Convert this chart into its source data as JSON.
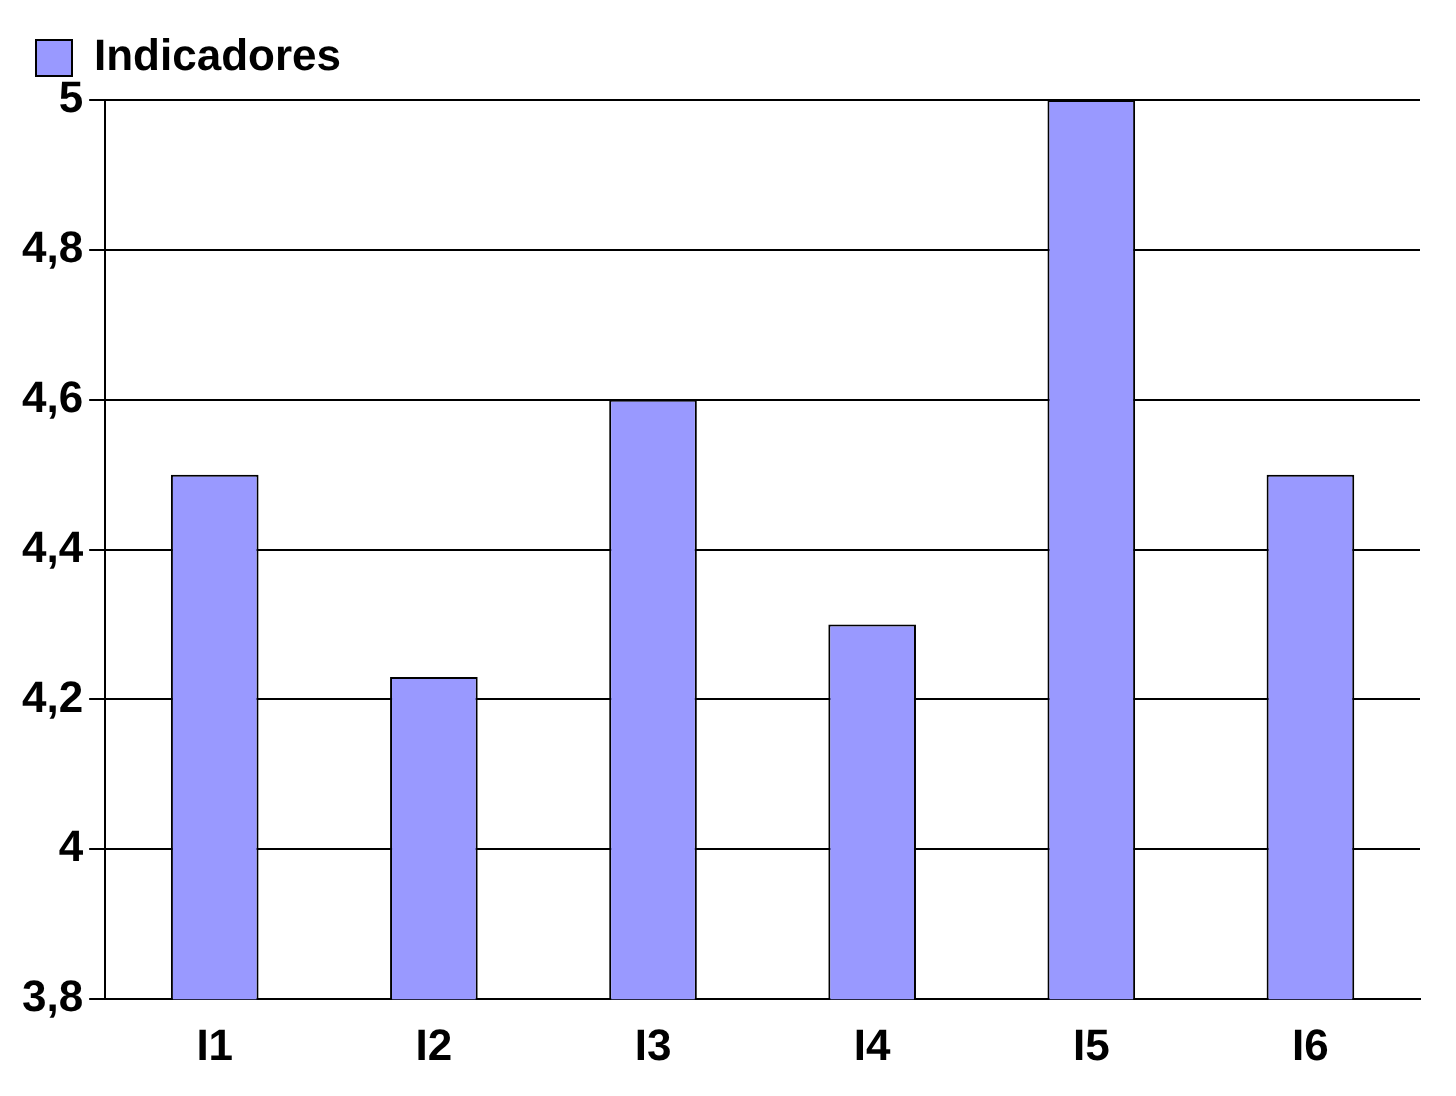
{
  "chart_data": {
    "type": "bar",
    "categories": [
      "I1",
      "I2",
      "I3",
      "I4",
      "I5",
      "I6"
    ],
    "series": [
      {
        "name": "Indicadores",
        "color": "#9999ff",
        "values": [
          4.5,
          4.23,
          4.6,
          4.3,
          5.0,
          4.5
        ]
      }
    ],
    "ylim": [
      3.8,
      5.0
    ],
    "yticks": [
      {
        "value": 3.8,
        "label": "3,8"
      },
      4,
      {
        "value": 4.2,
        "label": "4,2"
      },
      {
        "value": 4.4,
        "label": "4,4"
      },
      {
        "value": 4.6,
        "label": "4,6"
      },
      {
        "value": 4.8,
        "label": "4,8"
      },
      5
    ],
    "grid": "y",
    "legend": "top left"
  }
}
